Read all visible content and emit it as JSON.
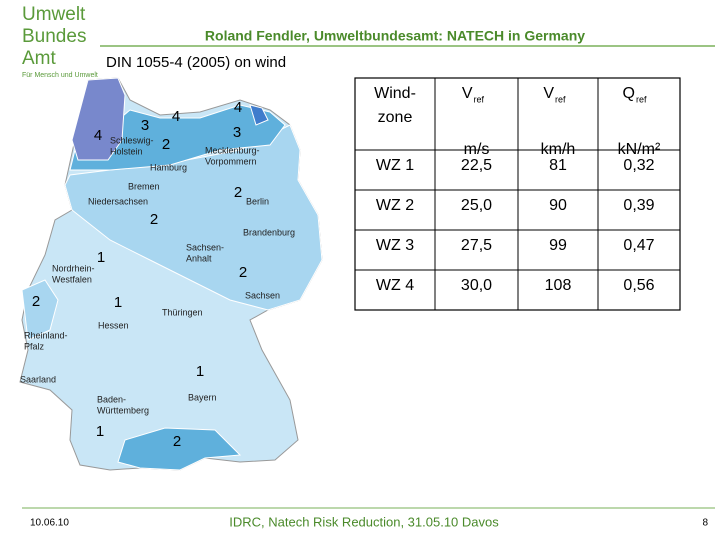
{
  "logo": {
    "lines": [
      "Umwelt",
      "Bundes",
      "Amt"
    ],
    "tagline": "Für Mensch und Umwelt"
  },
  "header": {
    "title": "Roland Fendler, Umweltbundesamt: NATECH in Germany",
    "subtitle": "DIN 1055-4 (2005) on wind"
  },
  "map": {
    "zone_labels": [
      "4",
      "4",
      "3",
      "3",
      "4",
      "2",
      "2",
      "2",
      "1",
      "2",
      "2",
      "1",
      "1",
      "1",
      "2"
    ],
    "region_labels": [
      [
        "Schleswig-",
        "Holstein"
      ],
      [
        "Hamburg"
      ],
      [
        "Mecklenburg-",
        "Vorpommern"
      ],
      [
        "Bremen"
      ],
      [
        "Niedersachsen"
      ],
      [
        "Berlin"
      ],
      [
        "Brandenburg"
      ],
      [
        "Sachsen-",
        "Anhalt"
      ],
      [
        "Nordrhein-",
        "Westfalen"
      ],
      [
        "Sachsen"
      ],
      [
        "Thüringen"
      ],
      [
        "Hessen"
      ],
      [
        "Rheinland-",
        "Pfalz"
      ],
      [
        "Saarland"
      ],
      [
        "Bayern"
      ],
      [
        "Baden-",
        "Württemberg"
      ]
    ]
  },
  "table": {
    "header": [
      {
        "main": "Wind-",
        "unit": "zone"
      },
      {
        "main": "V",
        "sub": "ref",
        "unit": "m/s"
      },
      {
        "main": "V",
        "sub": "ref",
        "unit": "km/h"
      },
      {
        "main": "Q",
        "sub": "ref",
        "unit": "kN/m²"
      }
    ],
    "rows": [
      [
        "WZ 1",
        "22,5",
        "81",
        "0,32"
      ],
      [
        "WZ 2",
        "25,0",
        "90",
        "0,39"
      ],
      [
        "WZ 3",
        "27,5",
        "99",
        "0,47"
      ],
      [
        "WZ 4",
        "30,0",
        "108",
        "0,56"
      ]
    ]
  },
  "footer": {
    "date": "10.06.10",
    "text": "IDRC, Natech Risk Reduction, 31.05.10 Davos",
    "page": "8"
  }
}
